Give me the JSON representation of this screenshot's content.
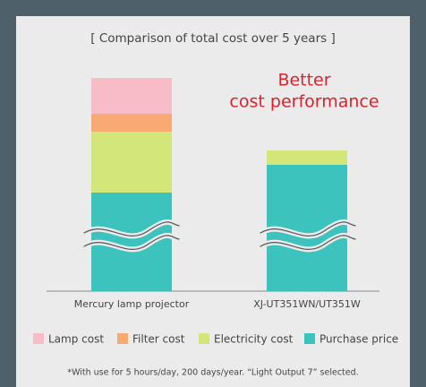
{
  "chart_data": {
    "type": "stacked_bar",
    "title": "[ Comparison of total cost over 5 years ]",
    "annotation": [
      "Better",
      "cost performance"
    ],
    "categories": [
      "Mercury lamp projector",
      "XJ-UT351WN/UT351W"
    ],
    "series": [
      {
        "name": "Purchase price",
        "color": "#3cc3bd",
        "values": [
          110,
          141
        ]
      },
      {
        "name": "Electricity cost",
        "color": "#d3e67a",
        "values": [
          68,
          16
        ]
      },
      {
        "name": "Filter cost",
        "color": "#f8aa72",
        "values": [
          20,
          0
        ]
      },
      {
        "name": "Lamp cost",
        "color": "#f7bcc8",
        "values": [
          40,
          0
        ]
      }
    ],
    "ylim": [
      0,
      240
    ],
    "footnote": "*With use for 5 hours/day, 200 days/year.   “Light Output 7” selected."
  }
}
